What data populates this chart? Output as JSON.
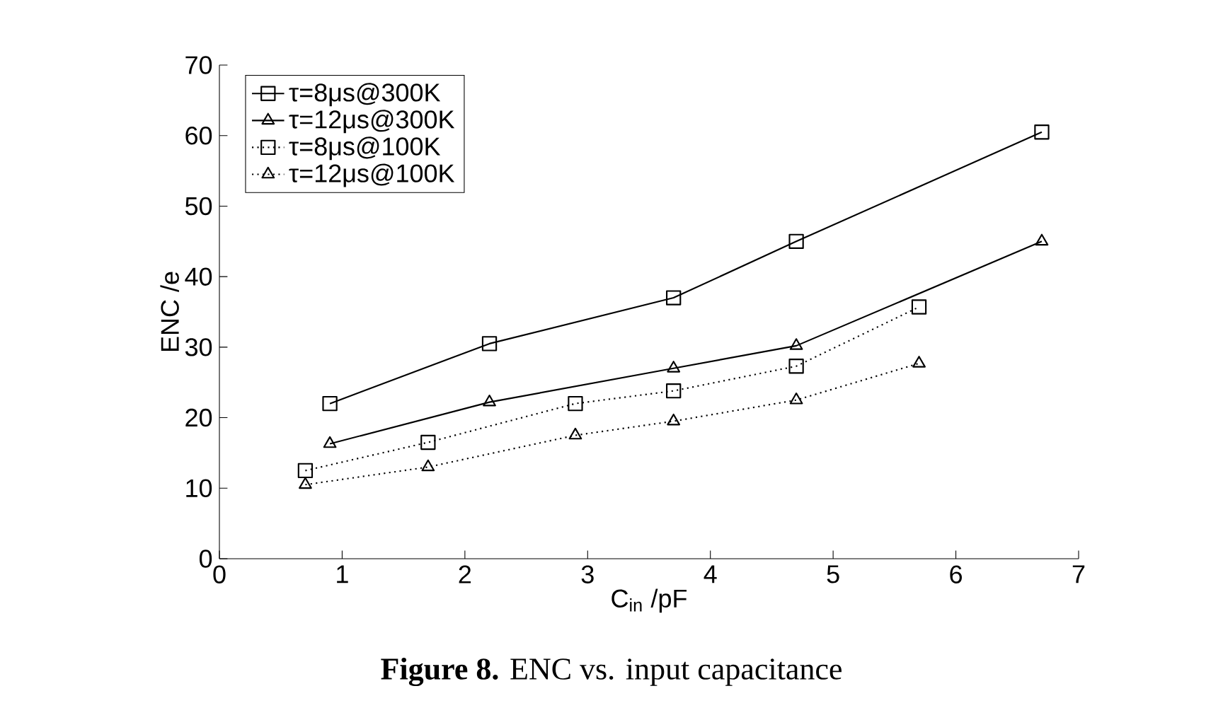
{
  "chart_data": {
    "type": "line",
    "title": "**Figure 8.** ENC vs. input capacitance",
    "xlabel": "C$_{in}$ /pF",
    "ylabel": "ENC /e",
    "xlim": [
      0,
      7
    ],
    "xticks": [
      0,
      1,
      2,
      3,
      4,
      5,
      6,
      7
    ],
    "ylim": [
      0,
      70
    ],
    "yticks": [
      0,
      10,
      20,
      30,
      40,
      50,
      60,
      70
    ],
    "grid": false,
    "legend": "top left",
    "series": [
      {
        "name": "τ=8μs@300K",
        "color": "#000000",
        "marker": "square",
        "line_style": "solid",
        "x": [
          0.9,
          2.2,
          3.7,
          4.7,
          6.7
        ],
        "values": [
          22,
          30.5,
          37,
          45,
          60.5
        ]
      },
      {
        "name": "τ=12μs@300K",
        "color": "#000000",
        "marker": "triangle",
        "line_style": "solid",
        "x": [
          0.9,
          2.2,
          3.7,
          4.7,
          6.7
        ],
        "values": [
          16.3,
          22.2,
          27,
          30.2,
          45
        ]
      },
      {
        "name": "τ=8μs@100K",
        "color": "#000000",
        "marker": "square",
        "line_style": "dotted",
        "x": [
          0.7,
          1.7,
          2.9,
          3.7,
          4.7,
          5.7
        ],
        "values": [
          12.5,
          16.5,
          22,
          23.8,
          27.3,
          35.7
        ]
      },
      {
        "name": "τ=12μs@100K",
        "color": "#000000",
        "marker": "triangle",
        "line_style": "dotted",
        "x": [
          0.7,
          1.7,
          2.9,
          3.7,
          4.7,
          5.7
        ],
        "values": [
          10.5,
          13,
          17.5,
          19.5,
          22.5,
          27.7
        ]
      }
    ]
  }
}
